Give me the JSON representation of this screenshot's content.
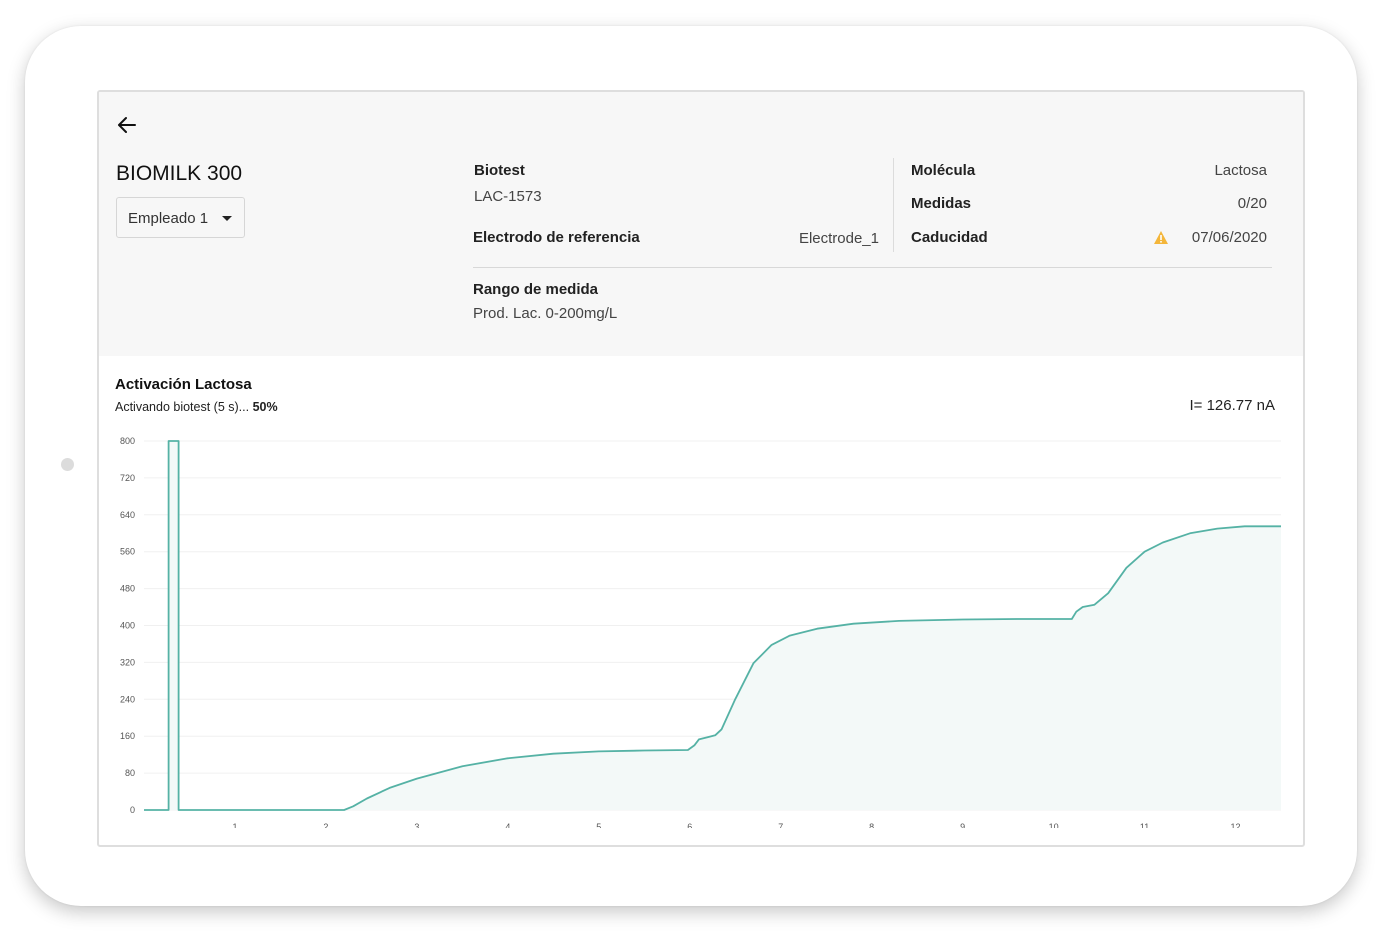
{
  "device": {
    "title": "BIOMILK 300"
  },
  "employee_select": {
    "selected": "Empleado 1"
  },
  "info": {
    "biotest_label": "Biotest",
    "biotest_value": "LAC-1573",
    "electrode_label": "Electrodo de referencia",
    "electrode_value": "Electrode_1",
    "molecule_label": "Molécula",
    "molecule_value": "Lactosa",
    "measures_label": "Medidas",
    "measures_value": "0/20",
    "expiry_label": "Caducidad",
    "expiry_value": "07/06/2020",
    "range_label": "Rango de medida",
    "range_value": "Prod. Lac. 0-200mg/L"
  },
  "activation": {
    "title": "Activación Lactosa",
    "status_text": "Activando biotest (5 s)...",
    "progress": "50%",
    "current": "I= 126.77 nA"
  },
  "icons": {
    "back": "arrow-left-icon",
    "warning": "warning-icon",
    "dropdown": "caret-down-icon"
  },
  "colors": {
    "line": "#55b2a5",
    "fill": "#f3f9f8",
    "warning": "#f4b63a"
  },
  "chart_data": {
    "type": "area",
    "title": "Activación Lactosa",
    "xlabel": "",
    "ylabel": "",
    "xlim": [
      0,
      12.5
    ],
    "ylim": [
      0,
      800
    ],
    "xticks": [
      "1",
      "2",
      "3",
      "4",
      "5",
      "6",
      "7",
      "8",
      "9",
      "10",
      "11",
      "12"
    ],
    "yticks": [
      "0",
      "80",
      "160",
      "240",
      "320",
      "400",
      "480",
      "560",
      "640",
      "720",
      "800"
    ],
    "grid": true,
    "series": [
      {
        "x": [
          0,
          0.27,
          0.27,
          0.38,
          0.38,
          2.2,
          2.3,
          2.45,
          2.7,
          3.0,
          3.5,
          4.0,
          4.5,
          5.0,
          5.5,
          5.98,
          6.05,
          6.1,
          6.2,
          6.28,
          6.35,
          6.5,
          6.7,
          6.9,
          7.1,
          7.4,
          7.8,
          8.3,
          9.0,
          9.6,
          10.2,
          10.25,
          10.32,
          10.45,
          10.6,
          10.8,
          11.0,
          11.2,
          11.5,
          11.8,
          12.1,
          12.5
        ],
        "y": [
          0,
          0,
          800,
          800,
          0,
          0,
          8,
          25,
          48,
          68,
          95,
          112,
          122,
          127,
          129,
          130,
          140,
          153,
          158,
          162,
          175,
          240,
          318,
          358,
          378,
          393,
          404,
          410,
          413,
          414,
          414,
          430,
          440,
          445,
          470,
          525,
          560,
          580,
          600,
          610,
          615,
          615
        ]
      }
    ]
  }
}
